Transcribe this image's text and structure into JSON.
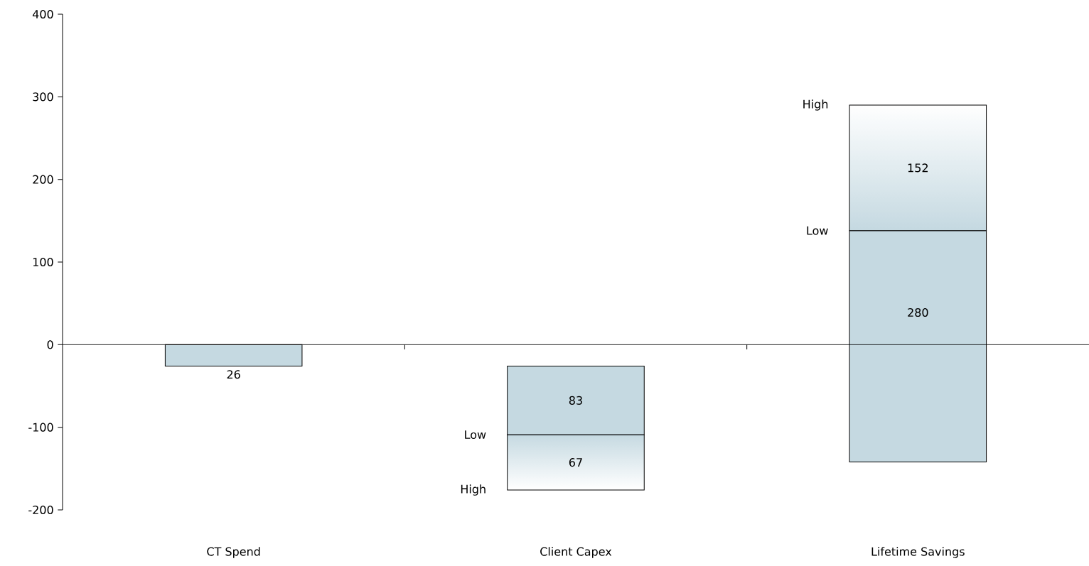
{
  "chart_data": {
    "type": "bar",
    "categories": [
      "CT Spend",
      "Client Capex",
      "Lifetime Savings"
    ],
    "series": [
      {
        "color": "#c5d9e1",
        "values": [
          -26,
          -83,
          280
        ],
        "base": [
          0,
          -26,
          -142
        ],
        "value_labels": [
          "26",
          "83",
          "280"
        ]
      },
      {
        "color": "#c5d9e1",
        "values": [
          null,
          -67,
          152
        ],
        "base": [
          null,
          -109,
          138
        ],
        "value_labels": [
          null,
          "67",
          "152"
        ]
      }
    ],
    "ylim": [
      -200,
      400
    ],
    "yticks": [
      -200,
      -100,
      0,
      100,
      200,
      300,
      400
    ],
    "annotations": [
      "Low",
      "High",
      "Low",
      "High"
    ]
  }
}
